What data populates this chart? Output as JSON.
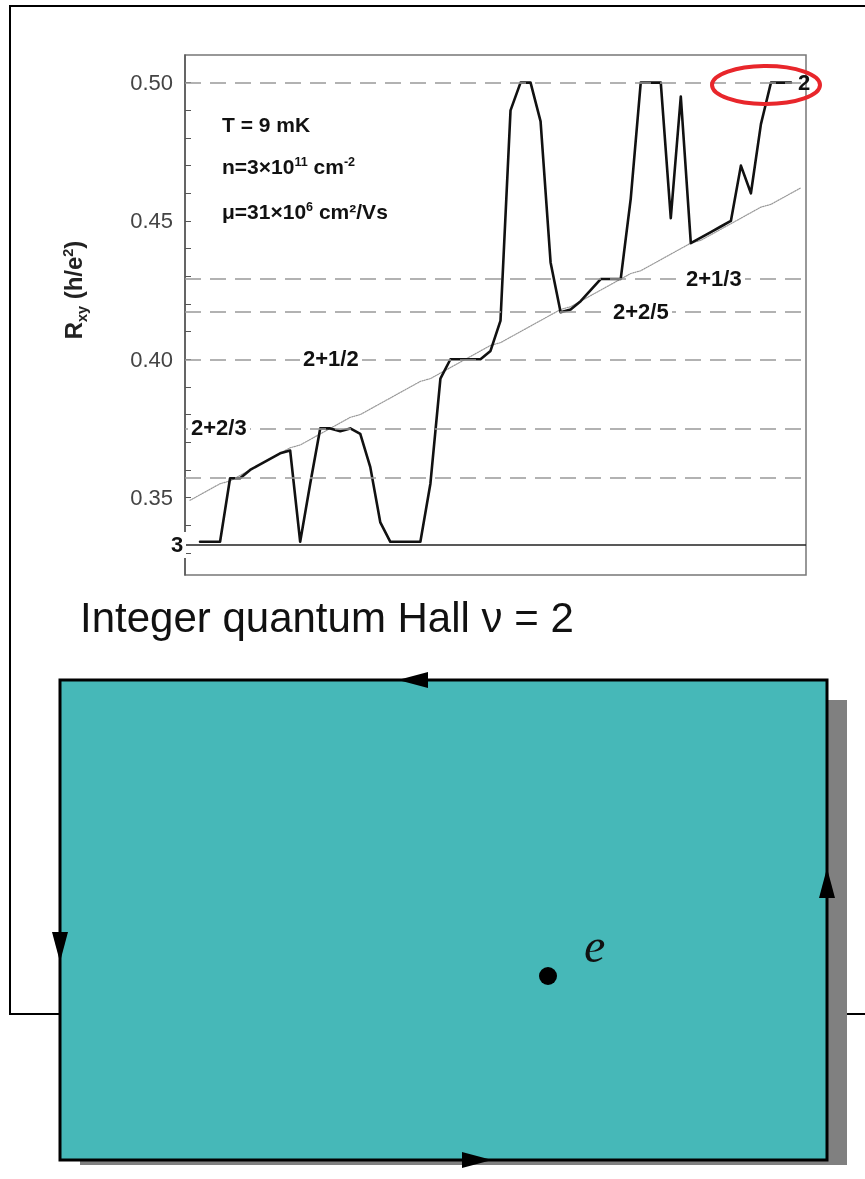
{
  "chart_data": {
    "type": "line",
    "ylabel": "R$_{xy}$ (h/e$^{2}$)",
    "categories": [
      null,
      null,
      null,
      null,
      null,
      null,
      null,
      null,
      null,
      null,
      null,
      null,
      null,
      null,
      null,
      null,
      null,
      null,
      null,
      null,
      null,
      null,
      null,
      null,
      null,
      null,
      null,
      null,
      null,
      null,
      null,
      null,
      null,
      null,
      null,
      null,
      null,
      null,
      null,
      null,
      null,
      null,
      null,
      null,
      null,
      null,
      null,
      null,
      null,
      null,
      null,
      null,
      null,
      null,
      null,
      null,
      null,
      null,
      null,
      null,
      null,
      null
    ],
    "series": [
      {
        "color": "#111111",
        "line_style": "solid",
        "values": [
          null,
          0.334,
          0.334,
          0.334,
          0.357,
          0.357,
          0.36,
          0.362,
          0.364,
          0.366,
          0.367,
          0.334,
          0.355,
          0.375,
          0.375,
          0.374,
          0.375,
          0.373,
          0.361,
          0.341,
          0.334,
          0.334,
          0.334,
          0.334,
          0.355,
          0.393,
          0.4,
          0.4,
          0.4,
          0.4,
          0.403,
          0.414,
          0.49,
          0.5,
          0.5,
          0.486,
          0.435,
          0.417,
          0.418,
          0.421,
          0.425,
          0.429,
          0.429,
          0.429,
          0.458,
          0.5,
          0.5,
          0.5,
          0.451,
          0.495,
          0.442,
          0.444,
          0.446,
          0.448,
          0.45,
          0.47,
          0.46,
          0.485,
          0.5,
          0.5,
          0.5,
          null
        ]
      },
      {
        "color": "#999999",
        "line_style": "dotted",
        "values": [
          0.349,
          0.351,
          0.353,
          0.355,
          0.356,
          0.358,
          0.36,
          0.362,
          0.364,
          0.366,
          0.368,
          0.369,
          0.371,
          0.373,
          0.375,
          0.377,
          0.379,
          0.38,
          0.382,
          0.384,
          0.386,
          0.388,
          0.39,
          0.392,
          0.393,
          0.395,
          0.397,
          0.399,
          0.401,
          0.403,
          0.405,
          0.406,
          0.408,
          0.41,
          0.412,
          0.414,
          0.416,
          0.418,
          0.419,
          0.421,
          0.423,
          0.425,
          0.427,
          0.429,
          0.431,
          0.432,
          0.434,
          0.436,
          0.438,
          0.44,
          0.442,
          0.443,
          0.445,
          0.447,
          0.449,
          0.451,
          0.453,
          0.455,
          0.456,
          0.458,
          0.46,
          0.462
        ]
      }
    ],
    "ylim": [
      0.322,
      0.51
    ],
    "yticks": [
      {
        "value": 0.33,
        "label": null
      },
      {
        "value": 0.34,
        "label": null
      },
      0.35,
      {
        "value": 0.36,
        "label": null
      },
      {
        "value": 0.37,
        "label": null
      },
      {
        "value": 0.38,
        "label": null
      },
      {
        "value": 0.39,
        "label": null
      },
      {
        "value": 0.4,
        "label": "0.40"
      },
      {
        "value": 0.41,
        "label": null
      },
      {
        "value": 0.42,
        "label": null
      },
      {
        "value": 0.43,
        "label": null
      },
      {
        "value": 0.44,
        "label": null
      },
      0.45,
      {
        "value": 0.46,
        "label": null
      },
      {
        "value": 0.47,
        "label": null
      },
      {
        "value": 0.48,
        "label": null
      },
      {
        "value": 0.49,
        "label": null
      },
      {
        "value": 0.5,
        "label": "0.50"
      }
    ],
    "tick_labels": "y",
    "marker": "none",
    "ref_lines": [
      {
        "axis": "y",
        "value": 0.333,
        "color": "#222222",
        "line_style": "solid"
      },
      {
        "axis": "y",
        "value": 0.357,
        "color": "#999999",
        "line_style": "dashed"
      },
      {
        "axis": "y",
        "value": 0.375,
        "color": "#999999",
        "line_style": "dashed"
      },
      {
        "axis": "y",
        "value": 0.4,
        "color": "#999999",
        "line_style": "dashed"
      },
      {
        "axis": "y",
        "value": 0.417,
        "color": "#999999",
        "line_style": "dashed"
      },
      {
        "axis": "y",
        "value": 0.429,
        "color": "#999999",
        "line_style": "dashed"
      },
      {
        "axis": "y",
        "value": 0.5,
        "color": "#999999",
        "line_style": "dashed"
      }
    ],
    "annotations": [
      "T = 9 mK",
      "n=3×10$^{11}$ cm$^{-2}$",
      "μ=31×10$^{6}$ cm²/Vs",
      {
        "text": "3",
        "y": 0.333
      },
      {
        "text": "2+2/3",
        "y": 0.375
      },
      {
        "text": "2+1/2",
        "y": 0.4
      },
      {
        "text": "2+2/5",
        "y": 0.417
      },
      {
        "text": "2+1/3",
        "y": 0.429
      },
      {
        "text": "2",
        "y": 0.5
      },
      "Integer quantum Hall ν = 2",
      "e"
    ]
  }
}
